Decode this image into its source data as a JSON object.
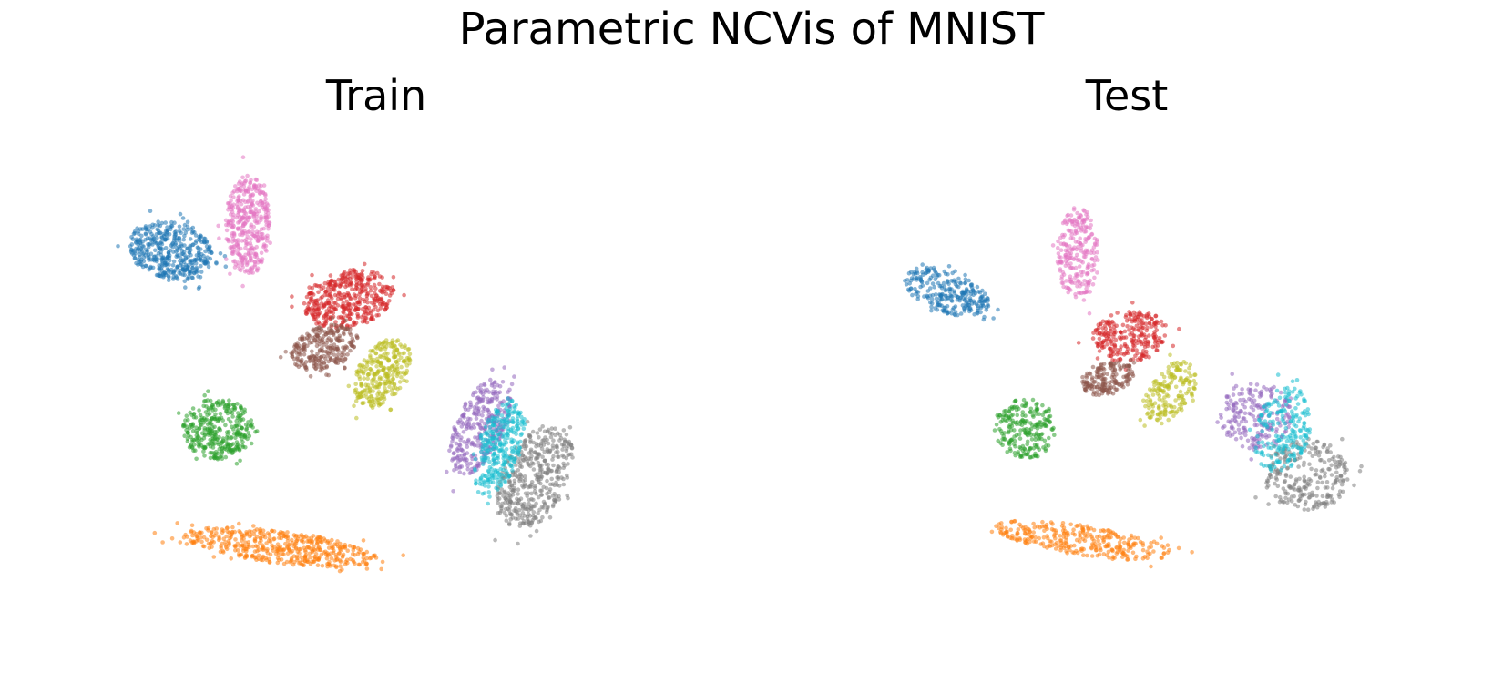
{
  "figure": {
    "title": "Parametric NCVis of MNIST"
  },
  "chart_data": [
    {
      "type": "scatter",
      "title": "Train",
      "axes_visible": false,
      "xlim": [
        -10,
        10
      ],
      "ylim": [
        -10,
        10
      ],
      "colors": [
        "#1f77b4",
        "#ff7f0e",
        "#2ca02c",
        "#d62728",
        "#9467bd",
        "#8c564b",
        "#e377c2",
        "#7f7f7f",
        "#bcbd22",
        "#17becf"
      ],
      "clusters": [
        {
          "class": 0,
          "color": "#1f77b4",
          "cx": -7.4,
          "cy": 5.5,
          "rx": 1.6,
          "ry": 1.2,
          "angle": -25,
          "n": 420
        },
        {
          "class": 1,
          "color": "#ff7f0e",
          "cx": -3.4,
          "cy": -7.3,
          "rx": 3.6,
          "ry": 0.7,
          "angle": -8,
          "n": 460
        },
        {
          "class": 2,
          "color": "#2ca02c",
          "cx": -5.7,
          "cy": -2.2,
          "rx": 1.3,
          "ry": 1.3,
          "angle": 0,
          "n": 340
        },
        {
          "class": 3,
          "color": "#d62728",
          "cx": -0.9,
          "cy": 3.4,
          "rx": 1.7,
          "ry": 1.2,
          "angle": 20,
          "n": 420
        },
        {
          "class": 4,
          "color": "#9467bd",
          "cx": 3.9,
          "cy": -2.1,
          "rx": 0.9,
          "ry": 2.2,
          "angle": -20,
          "n": 320
        },
        {
          "class": 5,
          "color": "#8c564b",
          "cx": -1.8,
          "cy": 1.3,
          "rx": 1.3,
          "ry": 0.9,
          "angle": 25,
          "n": 260
        },
        {
          "class": 6,
          "color": "#e377c2",
          "cx": -4.6,
          "cy": 6.6,
          "rx": 0.8,
          "ry": 2.2,
          "angle": 0,
          "n": 380
        },
        {
          "class": 7,
          "color": "#7f7f7f",
          "cx": 5.9,
          "cy": -4.3,
          "rx": 1.2,
          "ry": 2.4,
          "angle": -20,
          "n": 420
        },
        {
          "class": 8,
          "color": "#bcbd22",
          "cx": 0.3,
          "cy": 0.2,
          "rx": 0.9,
          "ry": 1.6,
          "angle": -25,
          "n": 300
        },
        {
          "class": 9,
          "color": "#17becf",
          "cx": 4.6,
          "cy": -3.0,
          "rx": 0.8,
          "ry": 2.1,
          "angle": -15,
          "n": 300
        }
      ]
    },
    {
      "type": "scatter",
      "title": "Test",
      "axes_visible": false,
      "xlim": [
        -10,
        10
      ],
      "ylim": [
        -10,
        10
      ],
      "colors": [
        "#1f77b4",
        "#ff7f0e",
        "#2ca02c",
        "#d62728",
        "#9467bd",
        "#8c564b",
        "#e377c2",
        "#7f7f7f",
        "#bcbd22",
        "#17becf"
      ],
      "clusters": [
        {
          "class": 0,
          "color": "#1f77b4",
          "cx": -6.7,
          "cy": 3.7,
          "rx": 1.7,
          "ry": 0.85,
          "angle": -25,
          "n": 260
        },
        {
          "class": 1,
          "color": "#ff7f0e",
          "cx": -1.7,
          "cy": -7.0,
          "rx": 3.3,
          "ry": 0.65,
          "angle": -10,
          "n": 300
        },
        {
          "class": 2,
          "color": "#2ca02c",
          "cx": -3.8,
          "cy": -2.2,
          "rx": 1.1,
          "ry": 1.3,
          "angle": 0,
          "n": 220
        },
        {
          "class": 3,
          "color": "#d62728",
          "cx": 0.0,
          "cy": 1.8,
          "rx": 1.4,
          "ry": 1.1,
          "angle": 15,
          "n": 260
        },
        {
          "class": 4,
          "color": "#9467bd",
          "cx": 4.6,
          "cy": -1.6,
          "rx": 1.3,
          "ry": 1.5,
          "angle": 0,
          "n": 200
        },
        {
          "class": 5,
          "color": "#8c564b",
          "cx": -0.8,
          "cy": 0.0,
          "rx": 1.0,
          "ry": 0.7,
          "angle": 25,
          "n": 170
        },
        {
          "class": 6,
          "color": "#e377c2",
          "cx": -1.9,
          "cy": 5.3,
          "rx": 0.75,
          "ry": 2.1,
          "angle": 0,
          "n": 240
        },
        {
          "class": 7,
          "color": "#7f7f7f",
          "cx": 6.5,
          "cy": -4.2,
          "rx": 1.6,
          "ry": 1.5,
          "angle": 0,
          "n": 260
        },
        {
          "class": 8,
          "color": "#bcbd22",
          "cx": 1.5,
          "cy": -0.6,
          "rx": 0.8,
          "ry": 1.4,
          "angle": -25,
          "n": 180
        },
        {
          "class": 9,
          "color": "#17becf",
          "cx": 5.6,
          "cy": -2.2,
          "rx": 1.0,
          "ry": 1.9,
          "angle": -10,
          "n": 200
        }
      ]
    }
  ]
}
